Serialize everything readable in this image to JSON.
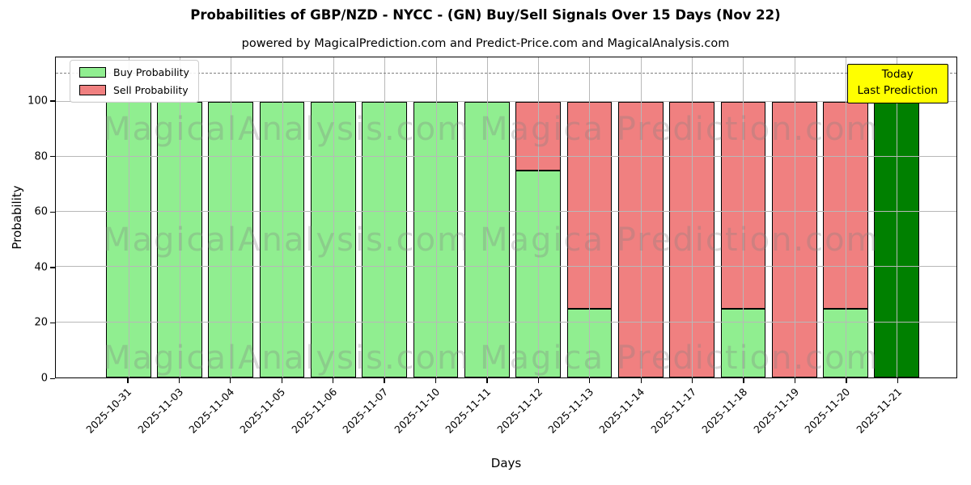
{
  "title": "Probabilities of GBP/NZD - NYCC -  (GN) Buy/Sell Signals Over 15 Days (Nov 22)",
  "subtitle": "powered by MagicalPrediction.com and Predict-Price.com and MagicalAnalysis.com",
  "legend": [
    {
      "label": "Buy Probability",
      "color": "#90ee90"
    },
    {
      "label": "Sell Probability",
      "color": "#f08080"
    }
  ],
  "annotation": {
    "line1": "Today",
    "line2": "Last Prediction",
    "bg_color": "#ffff00"
  },
  "watermarks": {
    "left_text": "MagicalAnalysis.com",
    "right_text": "Magica Prediction.com"
  },
  "colors": {
    "buy": "#90ee90",
    "sell": "#f08080",
    "today": "#008000",
    "grid": "#b8b8b8",
    "dashed": "#7f7f7f"
  },
  "chart_data": {
    "type": "bar",
    "stacked": true,
    "title": "Probabilities of GBP/NZD - NYCC -  (GN) Buy/Sell Signals Over 15 Days (Nov 22)",
    "xlabel": "Days",
    "ylabel": "Probability",
    "categories": [
      "2025-10-31",
      "2025-11-03",
      "2025-11-04",
      "2025-11-05",
      "2025-11-06",
      "2025-11-07",
      "2025-11-10",
      "2025-11-11",
      "2025-11-12",
      "2025-11-13",
      "2025-11-14",
      "2025-11-17",
      "2025-11-18",
      "2025-11-19",
      "2025-11-20",
      "2025-11-21"
    ],
    "series": [
      {
        "name": "Buy Probability",
        "color": "#90ee90",
        "values": [
          100,
          100,
          100,
          100,
          100,
          100,
          100,
          100,
          75,
          25,
          0,
          0,
          25,
          0,
          25,
          0
        ]
      },
      {
        "name": "Sell Probability",
        "color": "#f08080",
        "values": [
          0,
          0,
          0,
          0,
          0,
          0,
          0,
          0,
          25,
          75,
          100,
          100,
          75,
          100,
          75,
          0
        ]
      },
      {
        "name": "Today Last Prediction",
        "color": "#008000",
        "values": [
          0,
          0,
          0,
          0,
          0,
          0,
          0,
          0,
          0,
          0,
          0,
          0,
          0,
          0,
          0,
          100
        ]
      }
    ],
    "ylim": [
      0,
      116
    ],
    "yticks": [
      0,
      20,
      40,
      60,
      80,
      100
    ],
    "dashed_line_y": 110,
    "grid": true,
    "legend_position": "upper left"
  }
}
